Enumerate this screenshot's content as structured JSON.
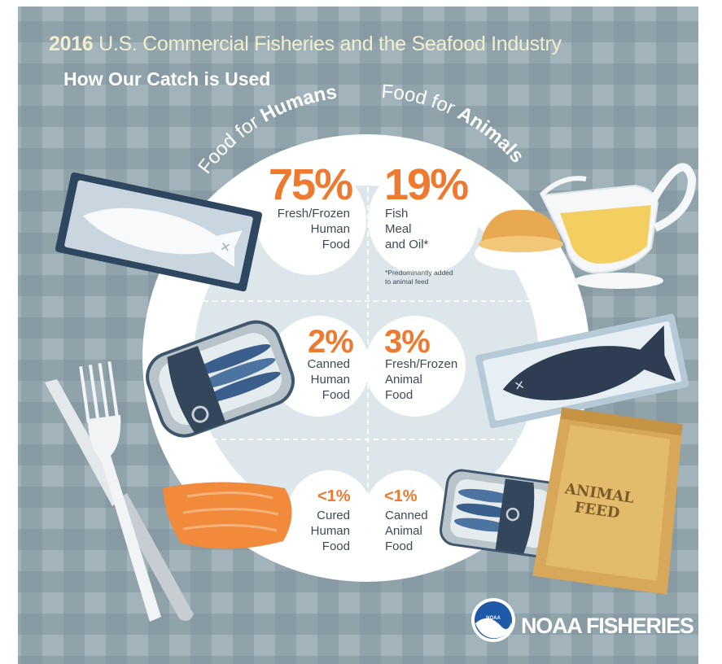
{
  "header": {
    "year": "2016",
    "title_rest": "U.S. Commercial Fisheries and the Seafood Industry",
    "subtitle": "How Our Catch is Used"
  },
  "arcs": {
    "humans_prefix": "Food for ",
    "humans_bold": "Humans",
    "animals_prefix": "Food for ",
    "animals_bold": "Animals"
  },
  "human_uses": [
    {
      "percent": "75%",
      "label": "Fresh/Frozen\nHuman\nFood"
    },
    {
      "percent": "2%",
      "label": "Canned\nHuman\nFood"
    },
    {
      "percent": "<1%",
      "label": "Cured\nHuman\nFood"
    }
  ],
  "animal_uses": [
    {
      "percent": "19%",
      "label": "Fish\nMeal\nand Oil*",
      "note": "*Predominantly added\nto animal feed"
    },
    {
      "percent": "3%",
      "label": "Fresh/Frozen\nAnimal\nFood"
    },
    {
      "percent": "<1%",
      "label": "Canned\nAnimal\nFood"
    }
  ],
  "feed_sack_text": "ANIMAL\nFEED",
  "logo": {
    "badge": "NOAA",
    "text": "NOAA FISHERIES"
  },
  "colors": {
    "background": "#8ea1ab",
    "plate": "#ffffff",
    "inner_plate": "#dde6ea",
    "accent_orange": "#ee7a30",
    "title_cream": "#f2eecb",
    "text_dark": "#3d4a57"
  },
  "icons": [
    "salmon-tray-icon",
    "canned-sardines-icon",
    "salmon-fillet-icon",
    "fork-icon",
    "knife-icon",
    "fish-meal-bowl-icon",
    "fish-oil-gravy-boat-icon",
    "dark-fish-tray-icon",
    "sardine-can-icon",
    "animal-feed-sack-icon",
    "noaa-logo-icon"
  ]
}
